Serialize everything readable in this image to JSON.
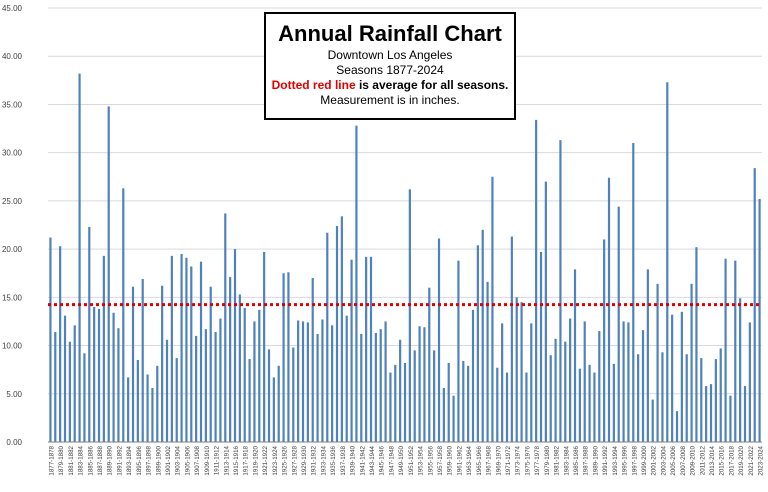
{
  "chart_data": {
    "type": "bar",
    "title": "Annual Rainfall Chart",
    "subtitle": [
      "Downtown Los Angeles",
      "Seasons 1877-2024"
    ],
    "note_red": "Dotted red line",
    "note_rest": " is average for all seasons.",
    "note_units": "Measurement is in inches.",
    "ylim": [
      0,
      45
    ],
    "yticks": [
      "0.00",
      "5.00",
      "10.00",
      "15.00",
      "20.00",
      "25.00",
      "30.00",
      "35.00",
      "40.00",
      "45.00"
    ],
    "grid": true,
    "average": 14.25,
    "colors": {
      "bar": "#4f81bd",
      "average": "#e00000",
      "grid": "#d9d9d9"
    },
    "x_tick_labels": [
      "1877-1878",
      "1879-1880",
      "1881-1882",
      "1883-1884",
      "1885-1886",
      "1887-1888",
      "1889-1890",
      "1891-1892",
      "1893-1894",
      "1895-1896",
      "1897-1898",
      "1899-1900",
      "1901-1902",
      "1903-1904",
      "1905-1906",
      "1907-1908",
      "1909-1910",
      "1911-1912",
      "1913-1914",
      "1915-1916",
      "1917-1918",
      "1919-1920",
      "1921-1922",
      "1923-1924",
      "1925-1926",
      "1927-1928",
      "1929-1930",
      "1931-1932",
      "1933-1934",
      "1935-1936",
      "1937-1938",
      "1939-1940",
      "1941-1942",
      "1943-1944",
      "1945-1946",
      "1947-1948",
      "1949-1950",
      "1951-1952",
      "1953-1954",
      "1955-1956",
      "1957-1958",
      "1959-1960",
      "1961-1962",
      "1963-1964",
      "1965-1966",
      "1967-1968",
      "1969-1970",
      "1971-1972",
      "1973-1974",
      "1975-1976",
      "1977-1978",
      "1979-1980",
      "1981-1982",
      "1983-1984",
      "1985-1986",
      "1987-1988",
      "1989-1990",
      "1991-1992",
      "1993-1994",
      "1995-1996",
      "1997-1998",
      "1999-2000",
      "2001-2002",
      "2003-2004",
      "2005-2006",
      "2007-2008",
      "2009-2010",
      "2011-2012",
      "2013-2014",
      "2015-2016",
      "2017-2018",
      "2019-2020",
      "2021-2022",
      "2023-2024"
    ],
    "values": [
      21.2,
      11.4,
      20.3,
      13.1,
      10.4,
      12.1,
      38.2,
      9.2,
      22.3,
      14.0,
      13.8,
      19.3,
      34.8,
      13.4,
      11.8,
      26.3,
      6.7,
      16.1,
      8.5,
      16.9,
      7.0,
      5.6,
      7.9,
      16.2,
      10.6,
      19.3,
      8.7,
      19.5,
      19.1,
      18.2,
      11.0,
      18.7,
      11.7,
      16.1,
      11.4,
      12.8,
      23.7,
      17.1,
      20.0,
      15.3,
      13.9,
      8.6,
      12.5,
      13.7,
      19.7,
      9.6,
      6.7,
      7.9,
      17.5,
      17.6,
      9.8,
      12.6,
      12.5,
      12.4,
      17.0,
      11.2,
      12.7,
      21.7,
      12.1,
      22.4,
      23.4,
      13.1,
      18.9,
      32.8,
      11.2,
      19.2,
      19.2,
      11.3,
      11.7,
      12.5,
      7.2,
      8.0,
      10.6,
      8.2,
      26.2,
      9.5,
      12.0,
      11.9,
      16.0,
      9.5,
      21.1,
      5.6,
      8.2,
      4.8,
      18.8,
      8.4,
      7.9,
      13.7,
      20.4,
      22.0,
      16.6,
      27.5,
      7.7,
      12.3,
      7.2,
      21.3,
      15.0,
      14.5,
      7.2,
      12.3,
      33.4,
      19.7,
      27.0,
      9.0,
      10.7,
      31.3,
      10.4,
      12.8,
      17.9,
      7.6,
      12.5,
      8.0,
      7.2,
      11.5,
      21.0,
      27.4,
      8.1,
      24.4,
      12.5,
      12.4,
      31.0,
      9.1,
      11.6,
      17.9,
      4.4,
      16.4,
      9.3,
      37.3,
      13.2,
      3.2,
      13.5,
      9.1,
      16.4,
      20.2,
      8.7,
      5.8,
      6.0,
      8.6,
      9.7,
      19.0,
      4.8,
      18.8,
      14.9,
      5.8,
      12.4,
      28.4,
      25.2
    ]
  }
}
